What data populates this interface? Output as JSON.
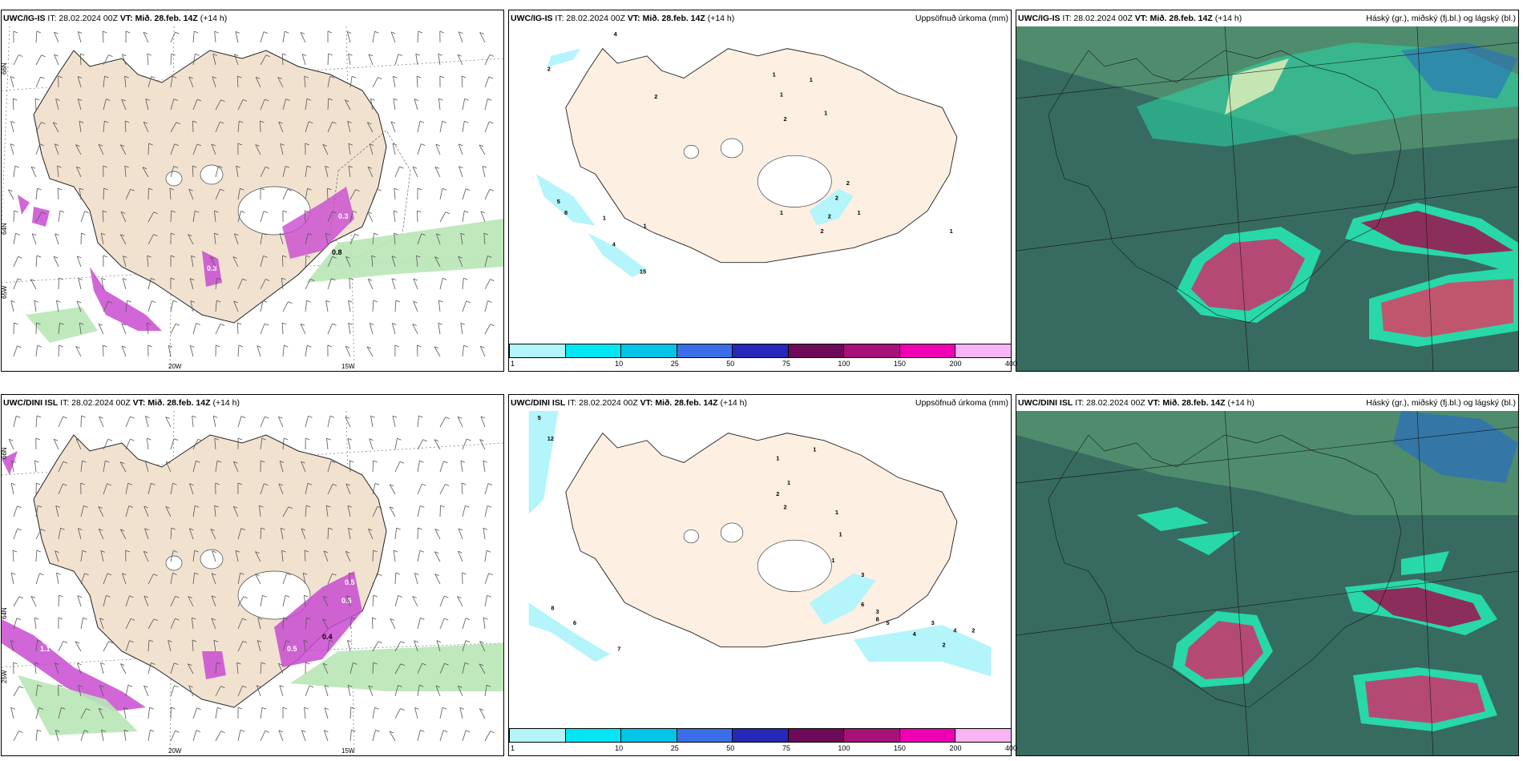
{
  "panels": [
    {
      "id": "top-left",
      "model": "UWC/IG-IS",
      "it": "IT: 28.02.2024 00Z",
      "vt_label": "VT:",
      "vt": "Mið. 28.feb. 14Z",
      "lead": "(+14 h)",
      "right_title": "",
      "values": [
        "0.3",
        "0.8",
        "0.3"
      ],
      "lat_labels": [
        "66N",
        "64N",
        "65W"
      ],
      "lon_labels": [
        "20W",
        "15W"
      ]
    },
    {
      "id": "top-middle",
      "model": "UWC/IG-IS",
      "it": "IT: 28.02.2024 00Z",
      "vt_label": "VT:",
      "vt": "Mið. 28.feb. 14Z",
      "lead": "(+14 h)",
      "right_title": "Uppsöfnuð úrkoma (mm)",
      "values": [
        "4",
        "2",
        "1",
        "1",
        "1",
        "1",
        "2",
        "1",
        "1",
        "2",
        "2",
        "2",
        "2",
        "1",
        "2",
        "5",
        "8",
        "1",
        "1",
        "4",
        "15"
      ]
    },
    {
      "id": "top-right",
      "model": "UWC/IG-IS",
      "it": "IT: 28.02.2024 00Z",
      "vt_label": "VT:",
      "vt": "Mið. 28.feb. 14Z",
      "lead": "(+14 h)",
      "right_title": "Háský (gr.), miðský (fj.bl.) og lágský (bl.)"
    },
    {
      "id": "bottom-left",
      "model": "UWC/DINI ISL",
      "it": "IT: 28.02.2024 00Z",
      "vt_label": "VT:",
      "vt": "Mið. 28.feb. 14Z",
      "lead": "(+14 h)",
      "right_title": "",
      "values": [
        "0.5",
        "0.5",
        "0.4",
        "0.5",
        "1.1"
      ],
      "lat_labels": [
        "66N",
        "64N",
        "25W"
      ],
      "lon_labels": [
        "20W",
        "15W"
      ]
    },
    {
      "id": "bottom-middle",
      "model": "UWC/DINI ISL",
      "it": "IT: 28.02.2024 00Z",
      "vt_label": "VT:",
      "vt": "Mið. 28.feb. 14Z",
      "lead": "(+14 h)",
      "right_title": "Uppsöfnuð úrkoma (mm)",
      "values": [
        "5",
        "12",
        "1",
        "1",
        "1",
        "2",
        "2",
        "1",
        "1",
        "1",
        "3",
        "3",
        "6",
        "8",
        "5",
        "4",
        "3",
        "2",
        "4",
        "2",
        "8",
        "6",
        "7"
      ]
    },
    {
      "id": "bottom-right",
      "model": "UWC/DINI ISL",
      "it": "IT: 28.02.2024 00Z",
      "vt_label": "VT:",
      "vt": "Mið. 28.feb. 14Z",
      "lead": "(+14 h)",
      "right_title": "Háský (gr.), miðský (fj.bl.) og lágský (bl.)"
    }
  ],
  "colorbar": {
    "colors": [
      "#b3f5fb",
      "#00e6f2",
      "#00c4e8",
      "#3a6ee6",
      "#2727b8",
      "#6e0a5a",
      "#a8107a",
      "#f000b4",
      "#f7b4f5"
    ],
    "labels": [
      "1",
      "10",
      "25",
      "50",
      "75",
      "100",
      "150",
      "200",
      "400"
    ]
  },
  "colors": {
    "land": "#f1e2d0",
    "land_precip": "#fdf0e2",
    "snow": "#ffffff",
    "purple": "#c94bd1",
    "green": "#b9e6b6",
    "cloud_base": "#376b60",
    "cloud_mid": "#4f8c6e",
    "cloud_low": "#28d8a8",
    "cloud_high": "#b44a74"
  }
}
